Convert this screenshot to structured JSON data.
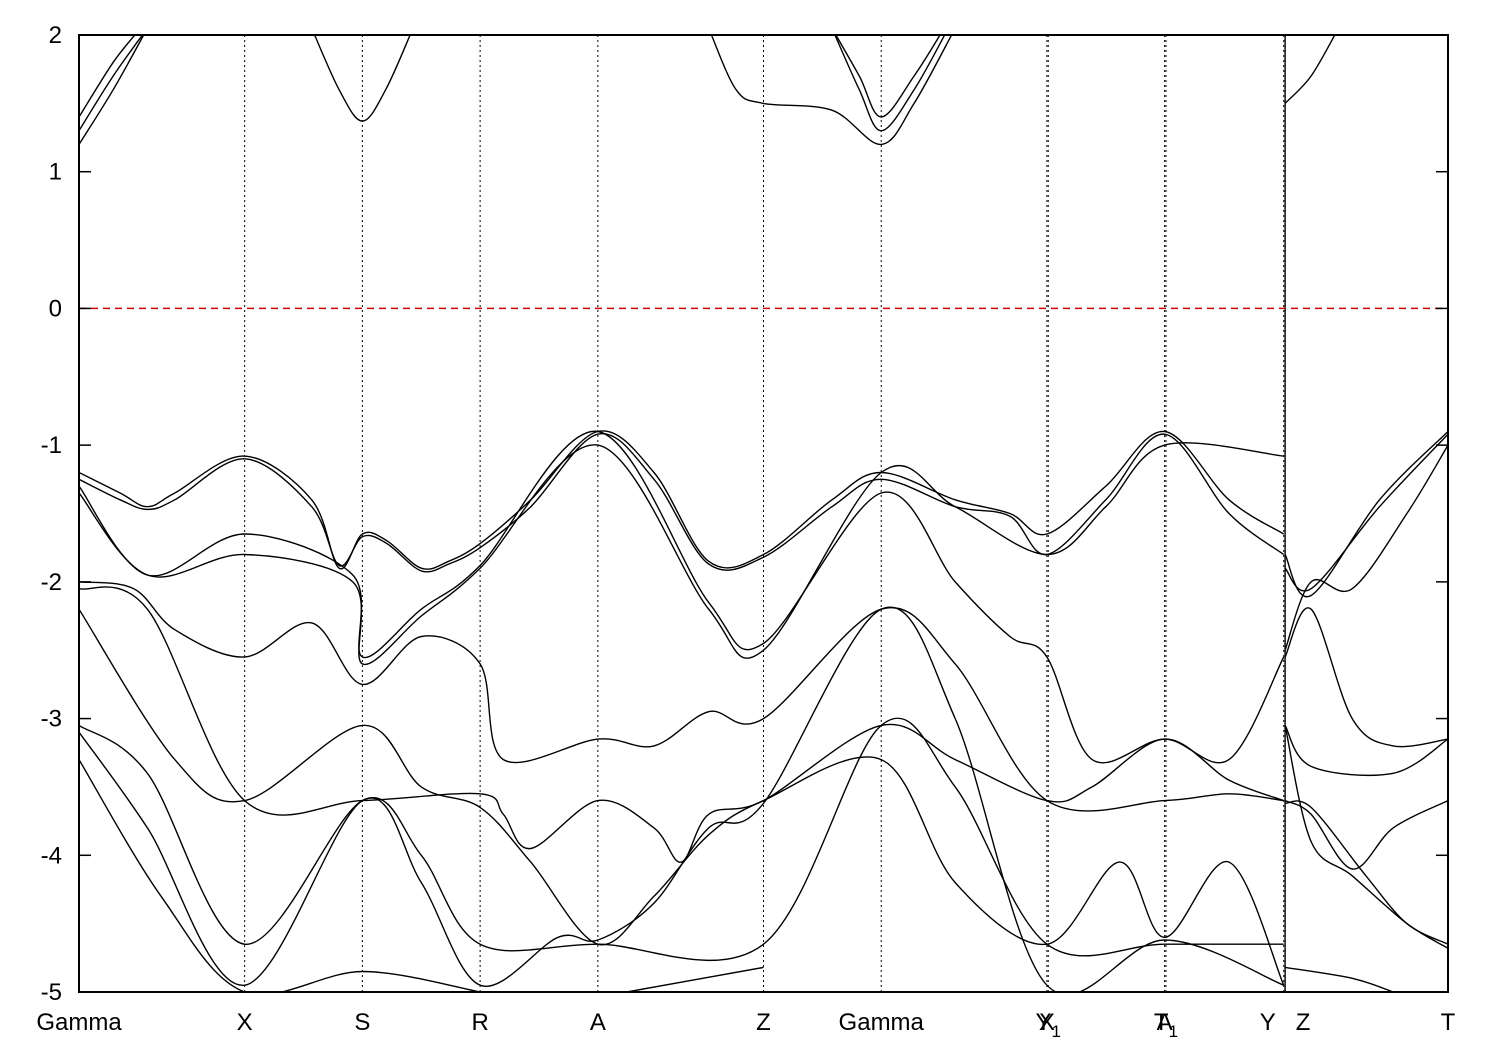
{
  "chart_data": {
    "type": "line",
    "title": "",
    "xlabel": "",
    "ylabel": "",
    "ylim": [
      -5,
      2
    ],
    "yticks": [
      -5,
      -4,
      -3,
      -2,
      -1,
      0,
      1,
      2
    ],
    "fermi_level": {
      "y": 0,
      "color": "#d00000",
      "style": "dashed"
    },
    "grid": "vertical dotted lines at high-symmetry points",
    "high_symmetry_points": [
      {
        "label": "Gamma",
        "x": 0.0
      },
      {
        "label": "X",
        "x": 0.121
      },
      {
        "label": "S",
        "x": 0.207
      },
      {
        "label": "R",
        "x": 0.293
      },
      {
        "label": "A",
        "x": 0.379
      },
      {
        "label": "Z",
        "x": 0.5
      },
      {
        "label": "Gamma",
        "x": 0.586
      },
      {
        "label": "X",
        "x": 0.707
      },
      {
        "label": "Y1",
        "x": 0.708
      },
      {
        "label": "A",
        "x": 0.793
      },
      {
        "label": "T1",
        "x": 0.794
      },
      {
        "label": "Y",
        "x": 0.88
      },
      {
        "label": "Z",
        "x": 0.881
      },
      {
        "label": "T",
        "x": 1.0
      }
    ],
    "segment_break_x": 0.881,
    "series": [
      {
        "values": [
          [
            0.0,
            1.2
          ],
          [
            0.025,
            1.6
          ],
          [
            0.05,
            2.05
          ]
        ]
      },
      {
        "values": [
          [
            0.0,
            1.3
          ],
          [
            0.025,
            1.7
          ],
          [
            0.05,
            2.05
          ]
        ]
      },
      {
        "values": [
          [
            0.0,
            1.4
          ],
          [
            0.025,
            1.8
          ],
          [
            0.045,
            2.05
          ]
        ]
      },
      {
        "values": [
          [
            0.17,
            2.05
          ],
          [
            0.19,
            1.6
          ],
          [
            0.207,
            1.37
          ],
          [
            0.224,
            1.6
          ],
          [
            0.244,
            2.05
          ]
        ]
      },
      {
        "values": [
          [
            0.46,
            2.05
          ],
          [
            0.48,
            1.6
          ],
          [
            0.5,
            1.5
          ],
          [
            0.55,
            1.45
          ],
          [
            0.586,
            1.2
          ],
          [
            0.61,
            1.5
          ],
          [
            0.64,
            2.05
          ]
        ]
      },
      {
        "values": [
          [
            0.55,
            2.05
          ],
          [
            0.57,
            1.6
          ],
          [
            0.586,
            1.3
          ],
          [
            0.61,
            1.6
          ],
          [
            0.635,
            2.05
          ]
        ]
      },
      {
        "values": [
          [
            0.55,
            2.05
          ],
          [
            0.57,
            1.7
          ],
          [
            0.586,
            1.4
          ],
          [
            0.61,
            1.7
          ],
          [
            0.632,
            2.05
          ]
        ]
      },
      {
        "values": [
          [
            0.881,
            1.5
          ],
          [
            0.9,
            1.7
          ],
          [
            0.92,
            2.05
          ]
        ]
      },
      {
        "values": [
          [
            0.0,
            -1.2
          ],
          [
            0.03,
            -1.35
          ],
          [
            0.05,
            -1.45
          ],
          [
            0.07,
            -1.35
          ],
          [
            0.121,
            -1.08
          ],
          [
            0.17,
            -1.4
          ],
          [
            0.19,
            -1.9
          ],
          [
            0.207,
            -1.65
          ],
          [
            0.225,
            -1.7
          ],
          [
            0.25,
            -1.9
          ],
          [
            0.27,
            -1.85
          ],
          [
            0.293,
            -1.72
          ],
          [
            0.33,
            -1.4
          ],
          [
            0.379,
            -0.9
          ],
          [
            0.42,
            -1.2
          ],
          [
            0.46,
            -1.85
          ],
          [
            0.5,
            -1.8
          ],
          [
            0.55,
            -1.4
          ],
          [
            0.586,
            -1.2
          ],
          [
            0.64,
            -1.4
          ],
          [
            0.68,
            -1.5
          ],
          [
            0.707,
            -1.65
          ],
          [
            0.75,
            -1.3
          ],
          [
            0.793,
            -0.9
          ],
          [
            0.84,
            -1.4
          ],
          [
            0.88,
            -1.65
          ]
        ]
      },
      {
        "values": [
          [
            0.0,
            -1.25
          ],
          [
            0.03,
            -1.4
          ],
          [
            0.05,
            -1.47
          ],
          [
            0.07,
            -1.4
          ],
          [
            0.121,
            -1.1
          ],
          [
            0.17,
            -1.45
          ],
          [
            0.19,
            -1.88
          ],
          [
            0.207,
            -1.67
          ],
          [
            0.225,
            -1.72
          ],
          [
            0.25,
            -1.92
          ],
          [
            0.27,
            -1.87
          ],
          [
            0.293,
            -1.75
          ],
          [
            0.33,
            -1.45
          ],
          [
            0.379,
            -0.92
          ],
          [
            0.42,
            -1.25
          ],
          [
            0.46,
            -1.87
          ],
          [
            0.5,
            -1.82
          ],
          [
            0.55,
            -1.45
          ],
          [
            0.586,
            -1.25
          ],
          [
            0.64,
            -1.45
          ],
          [
            0.68,
            -1.52
          ],
          [
            0.707,
            -1.8
          ],
          [
            0.75,
            -1.4
          ],
          [
            0.793,
            -0.92
          ],
          [
            0.84,
            -1.5
          ],
          [
            0.88,
            -1.8
          ]
        ]
      },
      {
        "values": [
          [
            0.0,
            -1.3
          ],
          [
            0.05,
            -1.95
          ],
          [
            0.121,
            -1.65
          ],
          [
            0.2,
            -1.95
          ],
          [
            0.207,
            -2.55
          ],
          [
            0.25,
            -2.2
          ],
          [
            0.293,
            -1.88
          ],
          [
            0.379,
            -0.9
          ],
          [
            0.46,
            -2.15
          ],
          [
            0.5,
            -2.45
          ],
          [
            0.586,
            -1.35
          ],
          [
            0.64,
            -2.0
          ],
          [
            0.68,
            -2.4
          ],
          [
            0.707,
            -2.55
          ],
          [
            0.74,
            -3.3
          ],
          [
            0.793,
            -3.15
          ],
          [
            0.84,
            -3.3
          ],
          [
            0.88,
            -2.55
          ]
        ]
      },
      {
        "values": [
          [
            0.0,
            -1.35
          ],
          [
            0.05,
            -1.95
          ],
          [
            0.121,
            -1.8
          ],
          [
            0.2,
            -2.0
          ],
          [
            0.207,
            -2.6
          ],
          [
            0.25,
            -2.25
          ],
          [
            0.293,
            -1.9
          ],
          [
            0.379,
            -1.0
          ],
          [
            0.46,
            -2.2
          ],
          [
            0.5,
            -2.5
          ],
          [
            0.586,
            -1.2
          ],
          [
            0.64,
            -1.45
          ],
          [
            0.707,
            -1.8
          ],
          [
            0.75,
            -1.45
          ],
          [
            0.793,
            -1.0
          ],
          [
            0.88,
            -1.08
          ]
        ]
      },
      {
        "values": [
          [
            0.0,
            -2.0
          ],
          [
            0.04,
            -2.05
          ],
          [
            0.07,
            -2.35
          ],
          [
            0.121,
            -2.55
          ],
          [
            0.17,
            -2.3
          ],
          [
            0.207,
            -2.75
          ],
          [
            0.25,
            -2.4
          ],
          [
            0.293,
            -2.6
          ],
          [
            0.31,
            -3.3
          ],
          [
            0.379,
            -3.15
          ],
          [
            0.42,
            -3.2
          ],
          [
            0.46,
            -2.95
          ],
          [
            0.5,
            -3.0
          ],
          [
            0.586,
            -2.2
          ],
          [
            0.64,
            -2.6
          ],
          [
            0.707,
            -3.6
          ],
          [
            0.793,
            -3.6
          ],
          [
            0.84,
            -3.55
          ],
          [
            0.88,
            -3.6
          ]
        ]
      },
      {
        "values": [
          [
            0.0,
            -2.05
          ],
          [
            0.05,
            -2.2
          ],
          [
            0.121,
            -3.6
          ],
          [
            0.207,
            -3.6
          ],
          [
            0.293,
            -3.55
          ],
          [
            0.31,
            -3.7
          ],
          [
            0.33,
            -3.95
          ],
          [
            0.379,
            -3.6
          ],
          [
            0.42,
            -3.8
          ],
          [
            0.44,
            -4.05
          ],
          [
            0.46,
            -3.7
          ],
          [
            0.5,
            -3.6
          ],
          [
            0.586,
            -3.05
          ],
          [
            0.64,
            -3.3
          ],
          [
            0.707,
            -3.6
          ],
          [
            0.74,
            -3.5
          ],
          [
            0.793,
            -3.15
          ],
          [
            0.84,
            -3.45
          ],
          [
            0.88,
            -3.6
          ]
        ]
      },
      {
        "values": [
          [
            0.0,
            -2.2
          ],
          [
            0.07,
            -3.3
          ],
          [
            0.121,
            -3.6
          ],
          [
            0.207,
            -3.05
          ],
          [
            0.25,
            -3.5
          ],
          [
            0.293,
            -3.65
          ],
          [
            0.33,
            -4.05
          ],
          [
            0.379,
            -4.65
          ],
          [
            0.42,
            -4.3
          ],
          [
            0.46,
            -3.85
          ],
          [
            0.5,
            -3.6
          ],
          [
            0.586,
            -3.3
          ],
          [
            0.64,
            -4.2
          ],
          [
            0.707,
            -4.65
          ],
          [
            0.76,
            -4.05
          ],
          [
            0.793,
            -4.6
          ],
          [
            0.84,
            -4.05
          ],
          [
            0.88,
            -4.95
          ]
        ]
      },
      {
        "values": [
          [
            0.0,
            -3.05
          ],
          [
            0.05,
            -3.4
          ],
          [
            0.121,
            -4.65
          ],
          [
            0.207,
            -3.6
          ],
          [
            0.25,
            -4.0
          ],
          [
            0.293,
            -4.65
          ],
          [
            0.379,
            -4.65
          ],
          [
            0.5,
            -4.65
          ],
          [
            0.586,
            -3.05
          ],
          [
            0.64,
            -3.5
          ],
          [
            0.707,
            -4.65
          ],
          [
            0.793,
            -4.65
          ],
          [
            0.88,
            -4.65
          ]
        ]
      },
      {
        "values": [
          [
            0.0,
            -3.1
          ],
          [
            0.05,
            -3.8
          ],
          [
            0.121,
            -4.95
          ],
          [
            0.207,
            -3.6
          ],
          [
            0.25,
            -4.2
          ],
          [
            0.293,
            -4.95
          ],
          [
            0.35,
            -4.6
          ],
          [
            0.379,
            -4.62
          ],
          [
            0.42,
            -4.35
          ],
          [
            0.46,
            -3.8
          ],
          [
            0.5,
            -3.62
          ],
          [
            0.586,
            -2.2
          ],
          [
            0.64,
            -3.0
          ],
          [
            0.707,
            -4.95
          ],
          [
            0.793,
            -4.62
          ],
          [
            0.88,
            -4.95
          ]
        ]
      },
      {
        "values": [
          [
            0.0,
            -3.3
          ],
          [
            0.06,
            -4.3
          ],
          [
            0.121,
            -5.0
          ],
          [
            0.207,
            -4.85
          ],
          [
            0.293,
            -5.0
          ]
        ]
      },
      {
        "values": [
          [
            0.4,
            -5.0
          ],
          [
            0.5,
            -4.82
          ]
        ]
      },
      {
        "values": [
          [
            0.881,
            -1.8
          ],
          [
            0.9,
            -2.1
          ],
          [
            0.95,
            -1.4
          ],
          [
            1.0,
            -0.9
          ]
        ]
      },
      {
        "values": [
          [
            0.881,
            -1.9
          ],
          [
            0.9,
            -2.05
          ],
          [
            0.95,
            -1.45
          ],
          [
            1.0,
            -0.92
          ]
        ]
      },
      {
        "values": [
          [
            0.881,
            -2.5
          ],
          [
            0.9,
            -2.0
          ],
          [
            0.93,
            -2.05
          ],
          [
            0.97,
            -1.5
          ],
          [
            1.0,
            -1.0
          ]
        ]
      },
      {
        "values": [
          [
            0.881,
            -2.55
          ],
          [
            0.9,
            -2.2
          ],
          [
            0.93,
            -3.0
          ],
          [
            0.96,
            -3.2
          ],
          [
            1.0,
            -3.15
          ]
        ]
      },
      {
        "values": [
          [
            0.881,
            -3.05
          ],
          [
            0.9,
            -3.35
          ],
          [
            0.96,
            -3.4
          ],
          [
            1.0,
            -3.15
          ]
        ]
      },
      {
        "values": [
          [
            0.881,
            -3.6
          ],
          [
            0.9,
            -3.7
          ],
          [
            0.93,
            -4.1
          ],
          [
            0.96,
            -3.8
          ],
          [
            1.0,
            -3.6
          ]
        ]
      },
      {
        "values": [
          [
            0.881,
            -3.62
          ],
          [
            0.9,
            -3.65
          ],
          [
            0.94,
            -4.15
          ],
          [
            0.97,
            -4.5
          ],
          [
            1.0,
            -4.65
          ]
        ]
      },
      {
        "values": [
          [
            0.881,
            -3.05
          ],
          [
            0.9,
            -3.9
          ],
          [
            0.93,
            -4.15
          ],
          [
            0.97,
            -4.5
          ],
          [
            1.0,
            -4.68
          ]
        ]
      },
      {
        "values": [
          [
            0.881,
            -4.82
          ],
          [
            0.93,
            -4.9
          ],
          [
            0.96,
            -5.0
          ]
        ]
      }
    ]
  }
}
